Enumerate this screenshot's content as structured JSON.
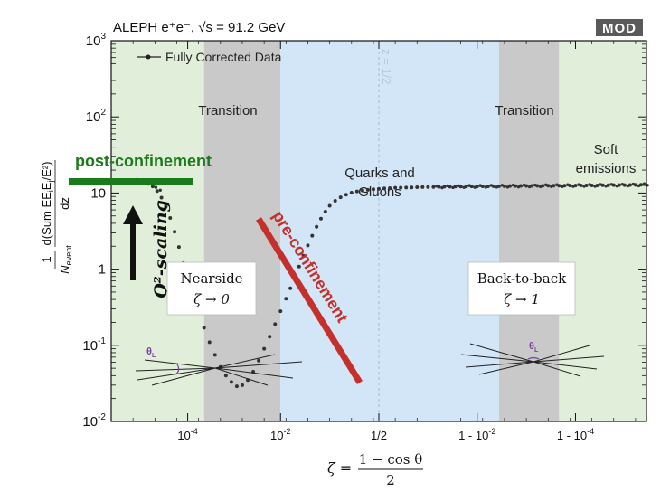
{
  "chart_data": {
    "type": "scatter",
    "title": "ALEPH e⁺e⁻, √s = 91.2 GeV",
    "brand": "MOD",
    "legend": {
      "label": "Fully Corrected Data",
      "position": "top-left"
    },
    "ylabel": {
      "prefix": "1",
      "denominator": "N",
      "denominator_sub": "event",
      "frac_num": "d(Sum EE",
      "frac_num_sub": "i",
      "frac_num_mid": "E",
      "frac_num_sub2": "j",
      "frac_num_tail": "/E²)",
      "frac_den": "dz"
    },
    "xlabel": {
      "lhs": "ζ =",
      "numerator": "1 − cos θ",
      "denominator": "2"
    },
    "y_scale": "log",
    "ylim": [
      0.01,
      1000
    ],
    "y_ticks": [
      {
        "base": "10",
        "exp": "-2",
        "value": 0.01
      },
      {
        "base": "10",
        "exp": "-1",
        "value": 0.1
      },
      {
        "base": "1",
        "exp": "",
        "value": 1
      },
      {
        "base": "10",
        "exp": "",
        "value": 10
      },
      {
        "base": "10",
        "exp": "2",
        "value": 100
      },
      {
        "base": "10",
        "exp": "3",
        "value": 1000
      }
    ],
    "x_ticks": [
      {
        "base": "10",
        "exp": "-4",
        "suffix": ""
      },
      {
        "base": "10",
        "exp": "-2",
        "suffix": ""
      },
      {
        "base": "1/2",
        "exp": "",
        "suffix": ""
      },
      {
        "base": "1 - 10",
        "exp": "-2",
        "suffix": ""
      },
      {
        "base": "1 - 10",
        "exp": "-4",
        "suffix": ""
      }
    ],
    "midline_label": "z = 1/2",
    "regions": [
      {
        "label": "Transition",
        "color": "#c9c9c9"
      },
      {
        "label": "Quarks and Gluons",
        "color": "#d3e6f7"
      },
      {
        "label": "Transition",
        "color": "#c9c9c9"
      },
      {
        "label": "Soft emissions",
        "color": "#e1eed9"
      }
    ],
    "region_colors": {
      "outer_green": "#e1eed9",
      "gray": "#c9c9c9",
      "blue": "#d3e6f7"
    },
    "annotations": {
      "post_confinement": {
        "text": "post-confinement",
        "color": "#1b7a1b"
      },
      "pre_confinement": {
        "text": "pre-confinement",
        "color": "#c4302b"
      },
      "scaling": {
        "text": "Q²-scaling"
      },
      "nearside": {
        "title": "Nearside",
        "limit": "ζ → 0"
      },
      "back_to_back": {
        "title": "Back-to-back",
        "limit": "ζ → 1"
      },
      "theta_label": "θ",
      "theta_sub": "L"
    },
    "series": [
      {
        "name": "Fully Corrected Data",
        "color": "#333333",
        "x_t": [
          0.12,
          0.16,
          0.2,
          0.24,
          0.27,
          0.3,
          0.34,
          0.38,
          0.42,
          0.46,
          0.5,
          0.54,
          0.58,
          0.62,
          0.66,
          0.7,
          0.75,
          0.8,
          0.85,
          0.9,
          0.95,
          1.0,
          1.05,
          1.1,
          1.15,
          1.2,
          1.25,
          1.3,
          1.35,
          1.4,
          1.45,
          1.5,
          1.55,
          1.6,
          1.64,
          1.68,
          1.72,
          1.76,
          1.8,
          1.84,
          1.88,
          1.92,
          1.96,
          2.0,
          2.05,
          2.1,
          2.15,
          2.2,
          2.25,
          2.3,
          2.35,
          2.4,
          2.45,
          2.5,
          2.55,
          2.6,
          2.65,
          2.7,
          2.75,
          2.8,
          2.85,
          2.9,
          2.95,
          3.0,
          3.05,
          3.1,
          3.15,
          3.2,
          3.25,
          3.3,
          3.35,
          3.4,
          3.45,
          3.5,
          3.55,
          3.6,
          3.65,
          3.7,
          3.75,
          3.8,
          3.85,
          3.9,
          3.95,
          4.0,
          4.05,
          4.1,
          4.15,
          4.2,
          4.25,
          4.3,
          4.35,
          4.4,
          4.45,
          4.5,
          4.55,
          4.6,
          4.65,
          4.7,
          4.75,
          4.8,
          4.85,
          4.88
        ],
        "y": [
          14.5,
          14.7,
          14.6,
          14.4,
          14.2,
          13.9,
          13.2,
          12.2,
          10.6,
          8.7,
          6.6,
          4.7,
          3.1,
          1.95,
          1.2,
          0.75,
          0.44,
          0.27,
          0.17,
          0.11,
          0.075,
          0.052,
          0.04,
          0.033,
          0.029,
          0.03,
          0.035,
          0.045,
          0.063,
          0.09,
          0.13,
          0.19,
          0.28,
          0.41,
          0.56,
          0.78,
          1.08,
          1.5,
          2.05,
          2.75,
          3.6,
          4.6,
          5.7,
          6.8,
          7.9,
          8.8,
          9.5,
          10.1,
          10.5,
          10.8,
          11.0,
          11.2,
          11.35,
          11.5,
          11.6,
          11.7,
          11.75,
          11.8,
          11.85,
          11.9,
          11.95,
          12.0,
          12.0,
          12.05,
          12.1,
          12.1,
          12.15,
          12.15,
          12.2,
          12.2,
          12.2,
          12.25,
          12.25,
          12.3,
          12.3,
          12.3,
          12.35,
          12.35,
          12.4,
          12.4,
          12.4,
          12.45,
          12.45,
          12.5,
          12.5,
          12.5,
          12.5,
          12.55,
          12.55,
          12.6,
          12.6,
          12.6,
          12.6,
          12.65,
          12.65,
          12.7,
          12.7,
          12.7,
          12.75,
          12.8,
          12.85,
          13.0
        ]
      }
    ]
  }
}
